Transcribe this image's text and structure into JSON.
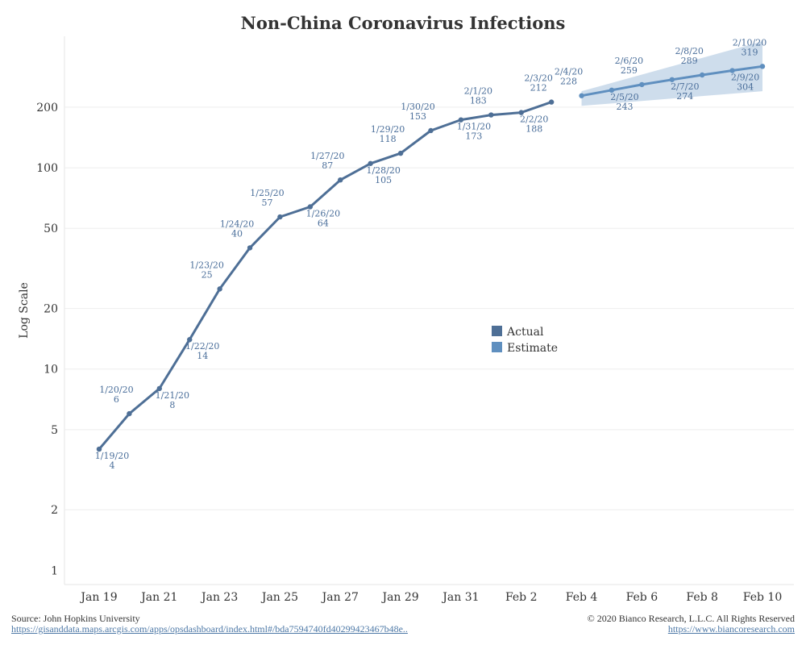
{
  "colors": {
    "actual": "#4e6f96",
    "estimate": "#5f8fbf",
    "band": "#c9d9ea",
    "label": "#4a6e9a",
    "axis_text": "#333333",
    "grid": "#eeeeee"
  },
  "chart_data": {
    "type": "line",
    "title": "Non-China Coronavirus Infections",
    "ylabel": "Log Scale",
    "xlabel": "",
    "yscale": "log",
    "ylim": [
      0.85,
      450
    ],
    "y_ticks": [
      {
        "value": 1,
        "label": "1"
      },
      {
        "value": 2,
        "label": "2"
      },
      {
        "value": 5,
        "label": "5"
      },
      {
        "value": 10,
        "label": "10"
      },
      {
        "value": 20,
        "label": "20"
      },
      {
        "value": 50,
        "label": "50"
      },
      {
        "value": 100,
        "label": "100"
      },
      {
        "value": 200,
        "label": "200"
      }
    ],
    "x_ticks": [
      {
        "day": 0,
        "label": "Jan 19"
      },
      {
        "day": 2,
        "label": "Jan 21"
      },
      {
        "day": 4,
        "label": "Jan 23"
      },
      {
        "day": 6,
        "label": "Jan 25"
      },
      {
        "day": 8,
        "label": "Jan 27"
      },
      {
        "day": 10,
        "label": "Jan 29"
      },
      {
        "day": 12,
        "label": "Jan 31"
      },
      {
        "day": 14,
        "label": "Feb 2"
      },
      {
        "day": 16,
        "label": "Feb 4"
      },
      {
        "day": 18,
        "label": "Feb 6"
      },
      {
        "day": 20,
        "label": "Feb 8"
      },
      {
        "day": 22,
        "label": "Feb 10"
      }
    ],
    "series": [
      {
        "name": "Actual",
        "points": [
          {
            "day": 0,
            "date": "1/19/20",
            "value": 4,
            "pos": "below"
          },
          {
            "day": 1,
            "date": "1/20/20",
            "value": 6,
            "pos": "above"
          },
          {
            "day": 2,
            "date": "1/21/20",
            "value": 8,
            "pos": "below"
          },
          {
            "day": 3,
            "date": "1/22/20",
            "value": 14,
            "pos": "below"
          },
          {
            "day": 4,
            "date": "1/23/20",
            "value": 25,
            "pos": "above"
          },
          {
            "day": 5,
            "date": "1/24/20",
            "value": 40,
            "pos": "above"
          },
          {
            "day": 6,
            "date": "1/25/20",
            "value": 57,
            "pos": "above"
          },
          {
            "day": 7,
            "date": "1/26/20",
            "value": 64,
            "pos": "below"
          },
          {
            "day": 8,
            "date": "1/27/20",
            "value": 87,
            "pos": "above"
          },
          {
            "day": 9,
            "date": "1/28/20",
            "value": 105,
            "pos": "below"
          },
          {
            "day": 10,
            "date": "1/29/20",
            "value": 118,
            "pos": "above"
          },
          {
            "day": 11,
            "date": "1/30/20",
            "value": 153,
            "pos": "above"
          },
          {
            "day": 12,
            "date": "1/31/20",
            "value": 173,
            "pos": "below"
          },
          {
            "day": 13,
            "date": "2/1/20",
            "value": 183,
            "pos": "above"
          },
          {
            "day": 14,
            "date": "2/2/20",
            "value": 188,
            "pos": "below"
          },
          {
            "day": 15,
            "date": "2/3/20",
            "value": 212,
            "pos": "above"
          }
        ]
      },
      {
        "name": "Estimate",
        "points": [
          {
            "day": 16,
            "date": "2/4/20",
            "value": 228,
            "pos": "above"
          },
          {
            "day": 17,
            "date": "2/5/20",
            "value": 243,
            "pos": "below"
          },
          {
            "day": 18,
            "date": "2/6/20",
            "value": 259,
            "pos": "above"
          },
          {
            "day": 19,
            "date": "2/7/20",
            "value": 274,
            "pos": "below"
          },
          {
            "day": 20,
            "date": "2/8/20",
            "value": 289,
            "pos": "above"
          },
          {
            "day": 21,
            "date": "2/9/20",
            "value": 304,
            "pos": "below"
          },
          {
            "day": 22,
            "date": "2/10/20",
            "value": 319,
            "pos": "above"
          }
        ],
        "band": {
          "lower": [
            203,
            240
          ],
          "upper": [
            240,
            425
          ]
        }
      }
    ],
    "legend": {
      "position": "center-right",
      "entries": [
        "Actual",
        "Estimate"
      ]
    }
  },
  "footer": {
    "source": "Source: John Hopkins University",
    "source_url": "https://gisanddata.maps.arcgis.com/apps/opsdashboard/index.html#/bda7594740fd40299423467b48e..",
    "copyright": "© 2020 Bianco Research, L.L.C. All Rights Reserved",
    "site_url": "https://www.biancoresearch.com"
  }
}
